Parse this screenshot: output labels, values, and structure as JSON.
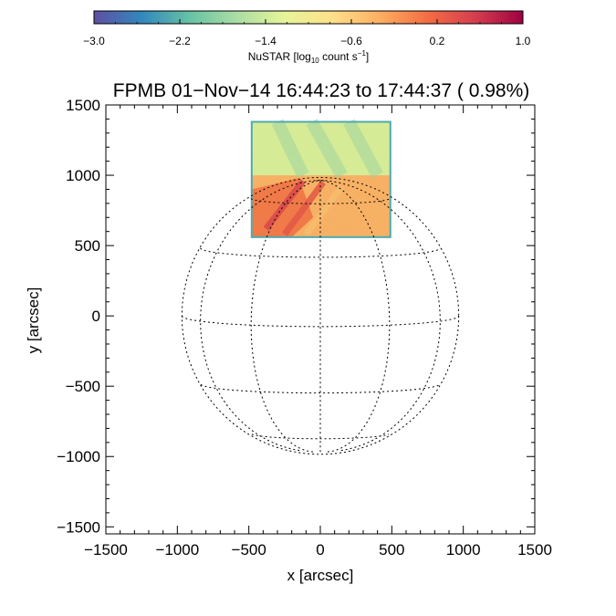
{
  "chart_data": {
    "type": "heatmap",
    "title": "FPMB 01−Nov−14 16:44:23 to 17:44:37 ( 0.98%)",
    "xlabel": "x [arcsec]",
    "ylabel": "y [arcsec]",
    "xlim": [
      -1500,
      1500
    ],
    "ylim": [
      -1550,
      1500
    ],
    "x_ticks": [
      -1500,
      -1000,
      -500,
      0,
      500,
      1000,
      1500
    ],
    "y_ticks": [
      -1500,
      -1000,
      -500,
      0,
      500,
      1000,
      1500
    ],
    "x_tick_labels": [
      "−1500",
      "−1000",
      "−500",
      "0",
      "500",
      "1000",
      "1500"
    ],
    "y_tick_labels": [
      "−1500",
      "−1000",
      "−500",
      "0",
      "500",
      "1000",
      "1500"
    ],
    "grid": false,
    "colorbar": {
      "label_main": "NuSTAR [log",
      "label_sub": "10",
      "label_mid": " count s",
      "label_sup": "−1",
      "label_end": "]",
      "range": [
        -3.0,
        1.0
      ],
      "ticks": [
        -3.0,
        -2.2,
        -1.4,
        -0.6,
        0.2,
        1.0
      ],
      "tick_labels": [
        "−3.0",
        "−2.2",
        "−1.4",
        "−0.6",
        "0.2",
        "1.0"
      ],
      "colormap": [
        "#5e4fa2",
        "#3288bd",
        "#66c2a5",
        "#abdda4",
        "#e6f598",
        "#fee08b",
        "#fdae61",
        "#f46d43",
        "#d53e4f",
        "#9e0142"
      ]
    },
    "solar_disk": {
      "radius": 968,
      "b0_deg": 4.5,
      "latitudes": [
        -60,
        -30,
        0,
        30,
        60
      ],
      "longitudes": [
        -60,
        -30,
        0,
        30,
        60
      ]
    },
    "image_region": {
      "x_range": [
        -480,
        490
      ],
      "y_range": [
        560,
        1380
      ],
      "upper_panel_level": -1.3,
      "lower_panel_level": -0.4
    }
  }
}
